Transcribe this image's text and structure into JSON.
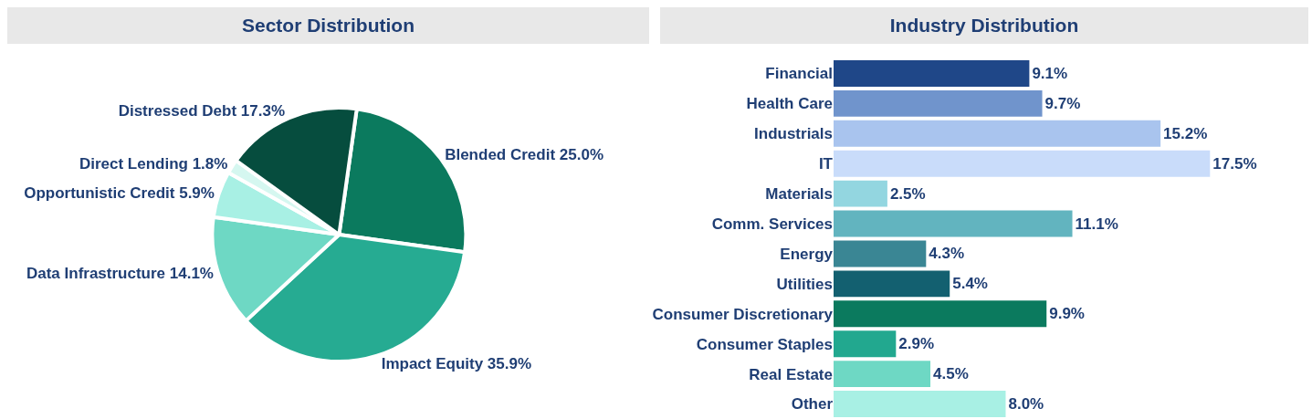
{
  "chart_data": [
    {
      "type": "pie",
      "title": "Sector Distribution",
      "categories": [
        "Blended Credit",
        "Impact Equity",
        "Data Infrastructure",
        "Opportunistic Credit",
        "Direct Lending",
        "Distressed Debt"
      ],
      "values": [
        25.0,
        35.9,
        14.1,
        5.9,
        1.8,
        17.3
      ],
      "value_labels": [
        "25.0%",
        "35.9%",
        "14.1%",
        "5.9%",
        "1.8%",
        "17.3%"
      ],
      "colors": [
        "#0b7a5e",
        "#26ab92",
        "#6ed8c4",
        "#a8f0e4",
        "#d5f7f0",
        "#064d3e"
      ]
    },
    {
      "type": "bar",
      "orientation": "horizontal",
      "title": "Industry Distribution",
      "categories": [
        "Financial",
        "Health Care",
        "Industrials",
        "IT",
        "Materials",
        "Comm. Services",
        "Energy",
        "Utilities",
        "Consumer Discretionary",
        "Consumer Staples",
        "Real Estate",
        "Other"
      ],
      "values": [
        9.1,
        9.7,
        15.2,
        17.5,
        2.5,
        11.1,
        4.3,
        5.4,
        9.9,
        2.9,
        4.5,
        8.0
      ],
      "value_labels": [
        "9.1%",
        "9.7%",
        "15.2%",
        "17.5%",
        "2.5%",
        "11.1%",
        "4.3%",
        "5.4%",
        "9.9%",
        "2.9%",
        "4.5%",
        "8.0%"
      ],
      "colors": [
        "#1f4788",
        "#7094cc",
        "#a9c4ee",
        "#c9dcfa",
        "#93d6e0",
        "#62b4bf",
        "#3a8694",
        "#136070",
        "#0b7a5e",
        "#22a88f",
        "#6ed8c4",
        "#a8f0e4"
      ],
      "tick_labels": "y"
    }
  ]
}
